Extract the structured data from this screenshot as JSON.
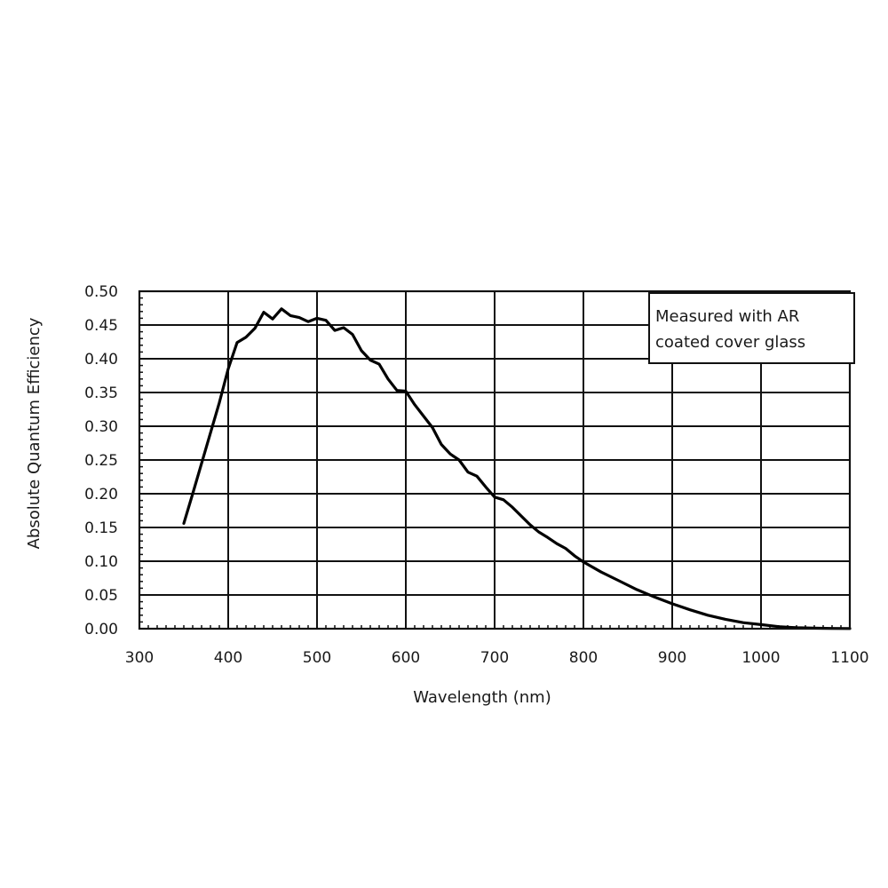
{
  "chart_data": {
    "type": "line",
    "xlabel": "Wavelength (nm)",
    "ylabel": "Absolute Quantum Efficiency",
    "xlim": [
      300,
      1100
    ],
    "ylim": [
      0,
      0.5
    ],
    "x_ticks": [
      "300",
      "400",
      "500",
      "600",
      "700",
      "800",
      "900",
      "1000",
      "1100"
    ],
    "y_ticks": [
      "0.00",
      "0.05",
      "0.10",
      "0.15",
      "0.20",
      "0.25",
      "0.30",
      "0.35",
      "0.40",
      "0.45",
      "0.50"
    ],
    "grid": true,
    "annotation": [
      "Measured with AR",
      "coated cover glass"
    ],
    "annotation_position": "top-right",
    "series": [
      {
        "x": [
          350,
          360,
          370,
          380,
          390,
          400,
          410,
          420,
          430,
          440,
          450,
          460,
          470,
          480,
          490,
          500,
          510,
          520,
          530,
          540,
          550,
          560,
          570,
          580,
          590,
          600,
          610,
          620,
          630,
          640,
          650,
          660,
          670,
          680,
          690,
          700,
          710,
          720,
          730,
          740,
          750,
          760,
          770,
          780,
          790,
          800,
          820,
          840,
          860,
          880,
          900,
          920,
          940,
          960,
          980,
          1000,
          1020,
          1040,
          1060,
          1080,
          1100
        ],
        "y": [
          0.156,
          0.2,
          0.245,
          0.29,
          0.335,
          0.385,
          0.424,
          0.432,
          0.445,
          0.469,
          0.459,
          0.474,
          0.464,
          0.461,
          0.455,
          0.46,
          0.457,
          0.442,
          0.446,
          0.436,
          0.412,
          0.398,
          0.392,
          0.37,
          0.353,
          0.352,
          0.332,
          0.315,
          0.298,
          0.273,
          0.259,
          0.25,
          0.232,
          0.226,
          0.21,
          0.195,
          0.191,
          0.18,
          0.167,
          0.154,
          0.143,
          0.135,
          0.126,
          0.119,
          0.108,
          0.099,
          0.084,
          0.071,
          0.058,
          0.047,
          0.037,
          0.028,
          0.02,
          0.014,
          0.009,
          0.006,
          0.003,
          0.0015,
          0.0008,
          0.0004,
          0.0002
        ]
      }
    ]
  }
}
